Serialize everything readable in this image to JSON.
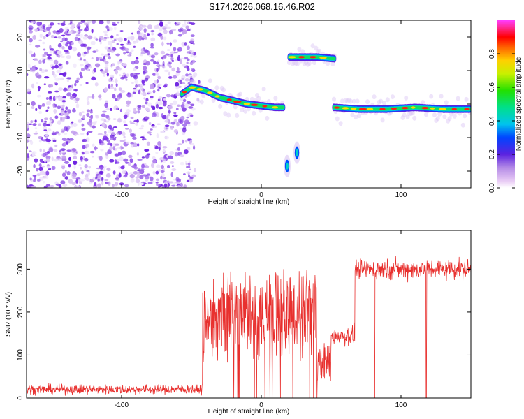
{
  "title": "S174.2026.068.16.46.R02",
  "colors": {
    "snr_line": "#e8302e",
    "speckle": "#7a2ee8",
    "background": "#ffffff"
  },
  "chart_data": [
    {
      "type": "heatmap",
      "xlabel": "Height of straight line (km)",
      "ylabel": "Frequency (Hz)",
      "xlim": [
        -168,
        150
      ],
      "ylim": [
        -25,
        25
      ],
      "xticks": [
        -100,
        0,
        100
      ],
      "yticks": [
        -20,
        -10,
        0,
        10,
        20
      ],
      "colorbar": {
        "label": "Normalized spectral amplitude",
        "ticks": [
          0.0,
          0.2,
          0.4,
          0.6,
          0.8
        ],
        "range": [
          0,
          1
        ]
      },
      "noise_region_x": [
        -168,
        -48
      ],
      "ridges": [
        {
          "x": [
            -57,
            -50,
            -40,
            -30,
            -20,
            -10,
            0,
            10,
            16
          ],
          "y": [
            3,
            5,
            4,
            2,
            1,
            0,
            -0.5,
            -1,
            -1
          ]
        },
        {
          "x": [
            20,
            30,
            40,
            53
          ],
          "y": [
            14,
            14,
            14,
            13.5
          ]
        },
        {
          "x": [
            52,
            70,
            90,
            110,
            130,
            150
          ],
          "y": [
            -1,
            -1.5,
            -1.5,
            -1,
            -1.5,
            -1.5
          ]
        }
      ],
      "blobs": [
        {
          "x": [
            17,
            20
          ],
          "y": [
            -20,
            -17
          ]
        },
        {
          "x": [
            24,
            27
          ],
          "y": [
            -16,
            -13
          ]
        }
      ],
      "grid": false
    },
    {
      "type": "line",
      "xlabel": "Height of straight line (km)",
      "ylabel": "SNR (10 * v/v)",
      "xlim": [
        -168,
        150
      ],
      "ylim": [
        0,
        390
      ],
      "xticks": [
        -100,
        0,
        100
      ],
      "yticks": [
        0,
        100,
        200,
        300
      ],
      "segments": [
        {
          "x_range": [
            -168,
            -42
          ],
          "mean": 20,
          "spread": 12
        },
        {
          "x_range": [
            -42,
            40
          ],
          "mean": 190,
          "spread": 110
        },
        {
          "x_range": [
            40,
            50
          ],
          "mean": 80,
          "spread": 50
        },
        {
          "x_range": [
            50,
            67
          ],
          "mean": 145,
          "spread": 25
        },
        {
          "x_range": [
            67,
            150
          ],
          "mean": 300,
          "spread": 25
        }
      ],
      "dropouts_x": [
        81,
        118
      ],
      "grid": false
    }
  ]
}
